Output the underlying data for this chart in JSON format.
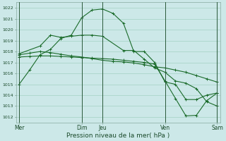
{
  "xlabel": "Pression niveau de la mer( hPa )",
  "bg_color": "#cce8e8",
  "grid_color": "#99ccbb",
  "line_color": "#1a6b2a",
  "vline_color": "#2a5a3a",
  "ylim": [
    1011.5,
    1022.5
  ],
  "yticks": [
    1012,
    1013,
    1014,
    1015,
    1016,
    1017,
    1018,
    1019,
    1020,
    1021,
    1022
  ],
  "xtick_positions": [
    0,
    6,
    8,
    14,
    19
  ],
  "xtick_labels": [
    "Mer",
    "Dim",
    "Jeu",
    "Ven",
    "Sam"
  ],
  "xlim": [
    -0.3,
    19.3
  ],
  "series": [
    {
      "x": [
        0,
        1,
        2,
        3,
        4,
        5,
        6,
        7,
        8,
        9,
        10,
        11,
        12,
        13,
        14,
        15,
        16,
        17,
        18,
        19
      ],
      "y": [
        1015.0,
        1016.3,
        1017.7,
        1018.2,
        1019.2,
        1019.5,
        1021.1,
        1021.8,
        1021.9,
        1021.5,
        1020.6,
        1018.0,
        1018.0,
        1017.0,
        1015.2,
        1015.0,
        1013.6,
        1013.6,
        1014.0,
        1014.2
      ]
    },
    {
      "x": [
        0,
        1,
        2,
        3,
        4,
        5,
        6,
        7,
        8,
        9,
        10,
        11,
        12,
        13,
        14,
        15,
        16,
        17,
        18,
        19
      ],
      "y": [
        1017.7,
        1017.85,
        1018.0,
        1017.9,
        1017.75,
        1017.6,
        1017.5,
        1017.35,
        1017.2,
        1017.1,
        1017.05,
        1016.95,
        1016.8,
        1016.6,
        1016.5,
        1016.3,
        1016.1,
        1015.8,
        1015.5,
        1015.2
      ]
    },
    {
      "x": [
        0,
        1,
        2,
        3,
        4,
        5,
        6,
        7,
        8,
        9,
        10,
        11,
        12,
        13,
        14,
        15,
        16,
        17,
        18,
        19
      ],
      "y": [
        1017.5,
        1017.55,
        1017.6,
        1017.6,
        1017.55,
        1017.5,
        1017.45,
        1017.4,
        1017.35,
        1017.3,
        1017.2,
        1017.1,
        1017.0,
        1016.85,
        1015.3,
        1013.7,
        1012.1,
        1012.15,
        1013.5,
        1014.2
      ]
    },
    {
      "x": [
        0,
        2,
        3,
        4,
        5,
        6,
        7,
        8,
        10,
        11,
        12,
        13,
        14,
        15,
        16,
        17,
        18,
        19
      ],
      "y": [
        1017.8,
        1018.5,
        1019.5,
        1019.3,
        1019.4,
        1019.5,
        1019.5,
        1019.4,
        1018.1,
        1018.1,
        1017.3,
        1016.5,
        1016.1,
        1015.3,
        1015.1,
        1014.6,
        1013.4,
        1013.0
      ]
    }
  ]
}
